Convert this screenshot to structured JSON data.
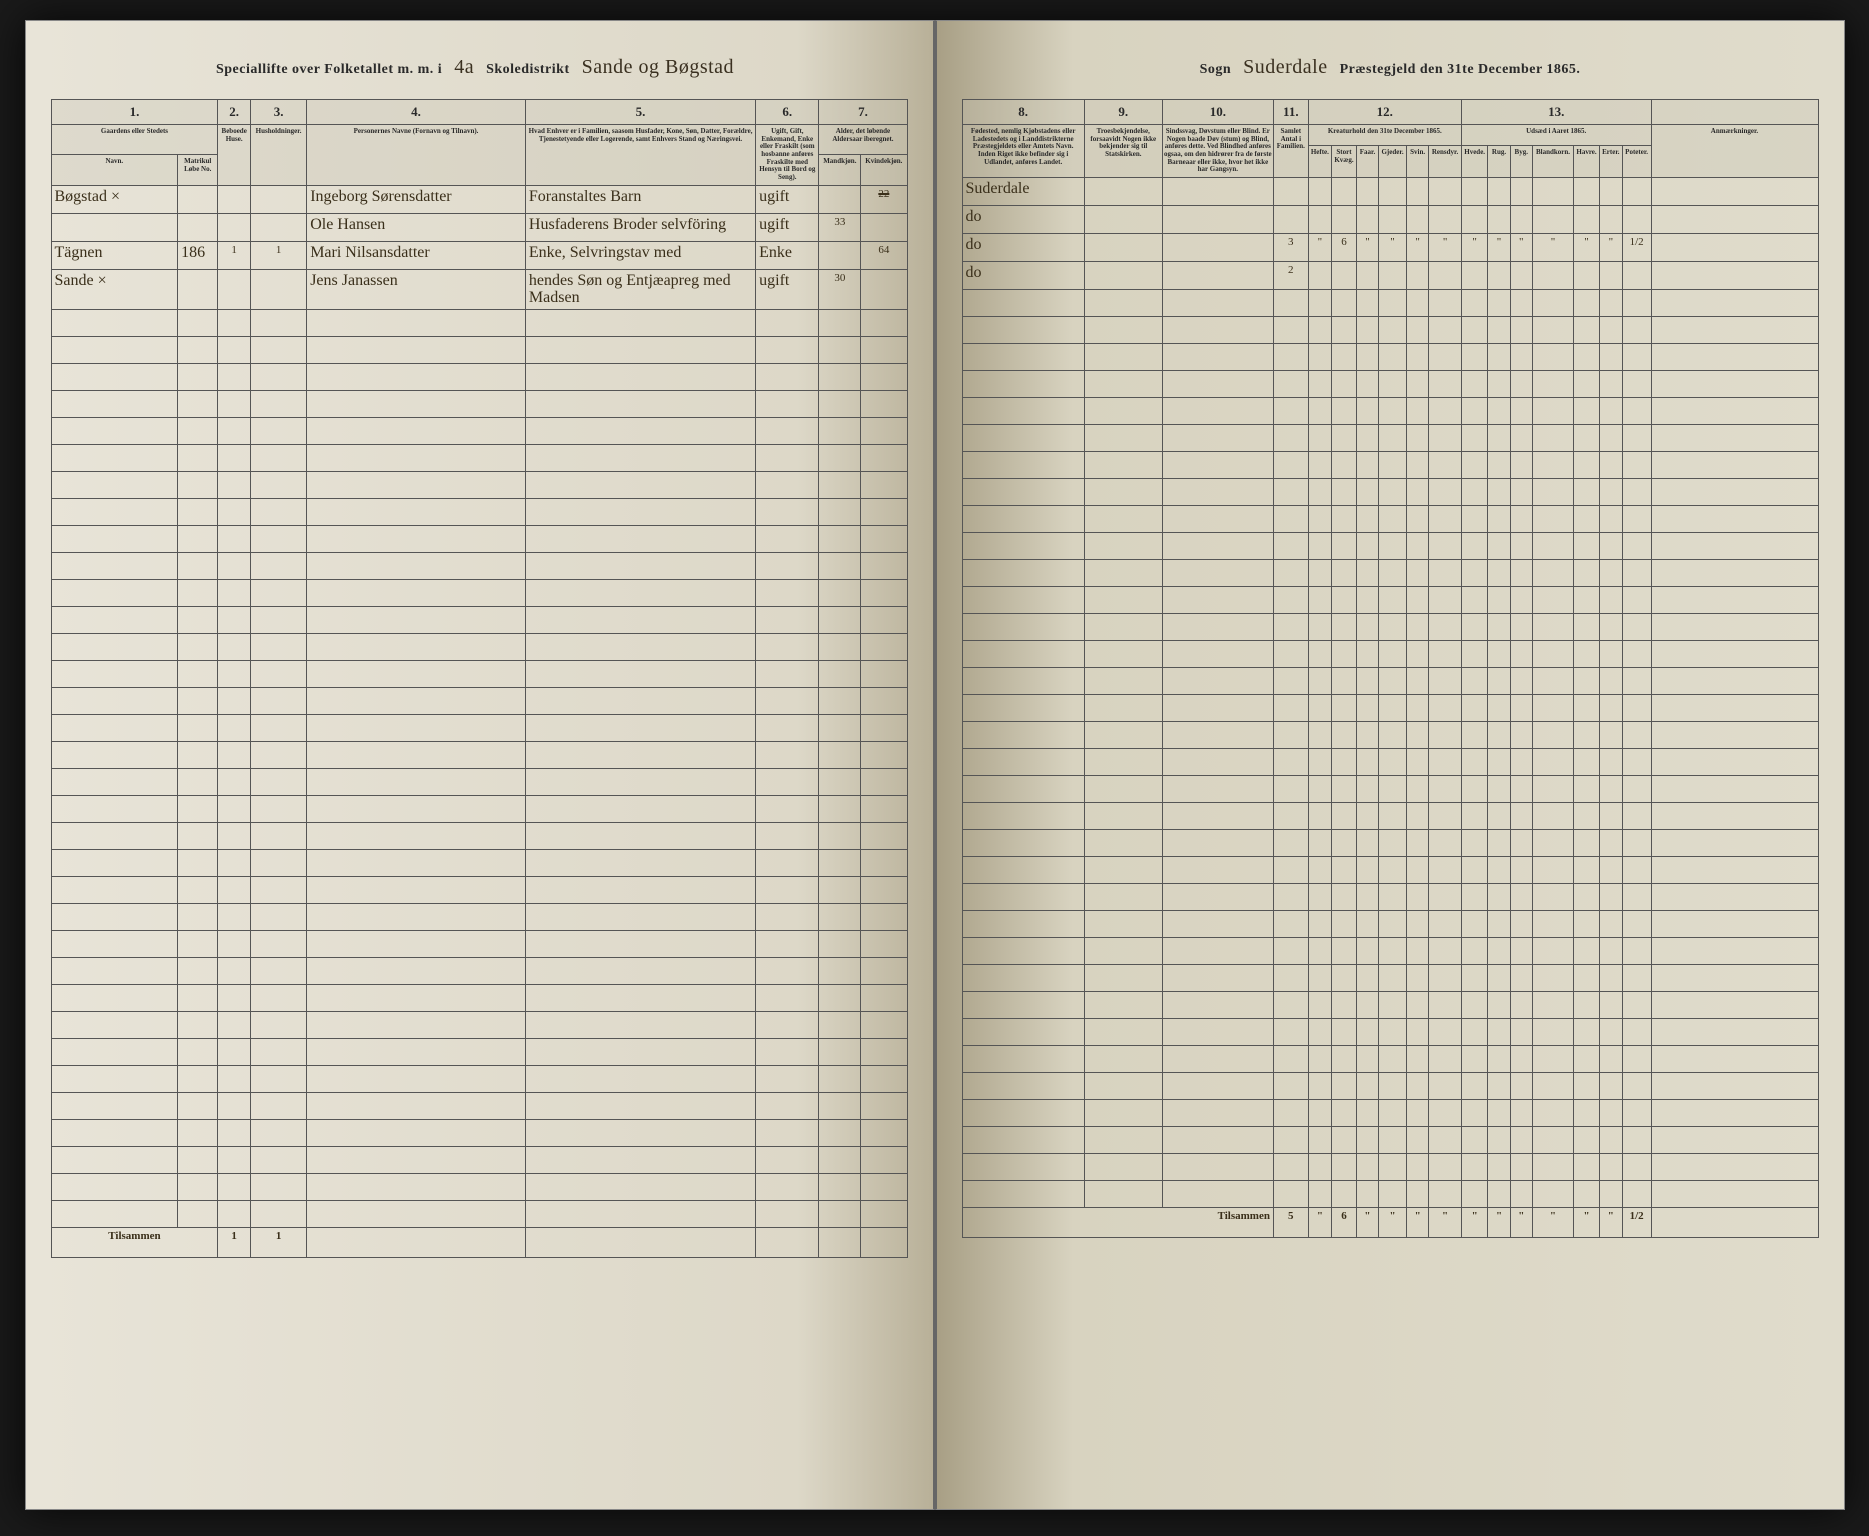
{
  "header": {
    "left_printed_1": "Speciallifte over Folketallet m. m. i",
    "district_num": "4a",
    "left_printed_2": "Skoledistrikt",
    "district_name": "Sande og Bøgstad",
    "right_printed_1": "Sogn",
    "parish_name": "Suderdale",
    "right_printed_2": "Præstegjeld den 31te December 1865."
  },
  "columns_left": {
    "c1": "1.",
    "c2": "2.",
    "c3": "3.",
    "c4": "4.",
    "c5": "5.",
    "c6": "6.",
    "c7": "7.",
    "c1_label": "Gaardens eller Stedets",
    "c1_sub_a": "Navn.",
    "c1_sub_b": "Matrikul Løbe No.",
    "c2_label": "Beboede Huse.",
    "c3_label": "Husholdninger.",
    "c4_label": "Personernes Navne (Fornavn og Tilnavn).",
    "c5_label": "Hvad Enhver er i Familien, saasom Husfader, Kone, Søn, Datter, Forældre, Tjenestetyende eller Logerende, samt Enhvers Stand og Næringsvei.",
    "c6_label": "Ugift, Gift, Enkemand, Enke eller Fraskilt (som hosbanne anføres Fraskilte med Hensyn til Bord og Seng).",
    "c7_label": "Alder, det løbende Aldersaar iberegnet.",
    "c7_sub_a": "Mandkjøn.",
    "c7_sub_b": "Kvindekjøn."
  },
  "columns_right": {
    "c8": "8.",
    "c9": "9.",
    "c10": "10.",
    "c11": "11.",
    "c12": "12.",
    "c13": "13.",
    "c8_label": "Fødested, nemlig Kjøbstadens eller Ladestedets og i Landdistrikterne Præstegjeldets eller Amtets Navn. Inden Riget ikke befinder sig i Udlandet, anføres Landet.",
    "c9_label": "Troesbekjendelse, forsaavidt Nogen ikke bekjender sig til Statskirken.",
    "c10_label": "Sindssvag, Døvstum eller Blind. Er Nogen baade Døv (stum) og Blind, anføres dette. Ved Blindhed anføres ogsaa, om den hidrører fra de første Barneaar eller ikke, hvor het ikke har Gangsyn.",
    "c11_label": "Samlet Antal i Familien.",
    "c12_label": "Kreaturhold den 31te December 1865.",
    "c12_subs": [
      "Hefte.",
      "Stort Kvæg.",
      "Faar.",
      "Gjeder.",
      "Svin.",
      "Rensdyr."
    ],
    "c13_label": "Udsæd i Aaret 1865.",
    "c13_subs": [
      "Hvede.",
      "Rug.",
      "Byg.",
      "Blandkorn.",
      "Havre.",
      "Erter.",
      "Poteter."
    ],
    "anm": "Anmærkninger."
  },
  "rows": [
    {
      "place": "Bøgstad ×",
      "mat": "",
      "h": "",
      "hh": "",
      "name": "Ingeborg Sørensdatter",
      "role": "Foranstaltes Barn",
      "status": "ugift",
      "age_m": "",
      "age_f_crossed": "22",
      "birthplace": "Suderdale",
      "c11": "",
      "livestock": [
        "",
        "",
        "",
        "",
        "",
        ""
      ],
      "seed": [
        "",
        "",
        "",
        "",
        "",
        "",
        ""
      ]
    },
    {
      "place": "",
      "mat": "",
      "h": "",
      "hh": "",
      "name": "Ole Hansen",
      "role": "Husfaderens Broder selvföring",
      "status": "ugift",
      "age_m": "33",
      "age_f": "",
      "birthplace": "do",
      "c11": "",
      "livestock": [
        "",
        "",
        "",
        "",
        "",
        ""
      ],
      "seed": [
        "",
        "",
        "",
        "",
        "",
        "",
        ""
      ]
    },
    {
      "place": "Tägnen",
      "mat": "186",
      "h": "1",
      "hh": "1",
      "name": "Mari Nilsansdatter",
      "role": "Enke, Selvringstav med",
      "status": "Enke",
      "age_m": "",
      "age_f": "64",
      "birthplace": "do",
      "c11": "3",
      "livestock": [
        "\"",
        "6",
        "\"",
        "\"",
        "\"",
        "\""
      ],
      "seed": [
        "\"",
        "\"",
        "\"",
        "\"",
        "\"",
        "\"",
        "1/2"
      ]
    },
    {
      "place": "Sande ×",
      "mat": "",
      "h": "",
      "hh": "",
      "name": "Jens Janassen",
      "role": "hendes Søn og Entjæapreg med Madsen",
      "status": "ugift",
      "age_m": "30",
      "age_f": "",
      "birthplace": "do",
      "c11": "2",
      "livestock": [
        "",
        "",
        "",
        "",
        "",
        ""
      ],
      "seed": [
        "",
        "",
        "",
        "",
        "",
        "",
        ""
      ]
    }
  ],
  "footer": {
    "label": "Tilsammen",
    "h_total": "1",
    "hh_total": "1",
    "c11_total": "5",
    "livestock_totals": [
      "\"",
      "6",
      "\"",
      "\"",
      "\"",
      "\""
    ],
    "seed_totals": [
      "\"",
      "\"",
      "\"",
      "\"",
      "\"",
      "\"",
      "1/2"
    ]
  },
  "blank_rows": 34,
  "colors": {
    "paper": "#ddd8c8",
    "ink": "#2a2a2a",
    "handwriting": "#3a2f1a",
    "rule": "#555"
  }
}
